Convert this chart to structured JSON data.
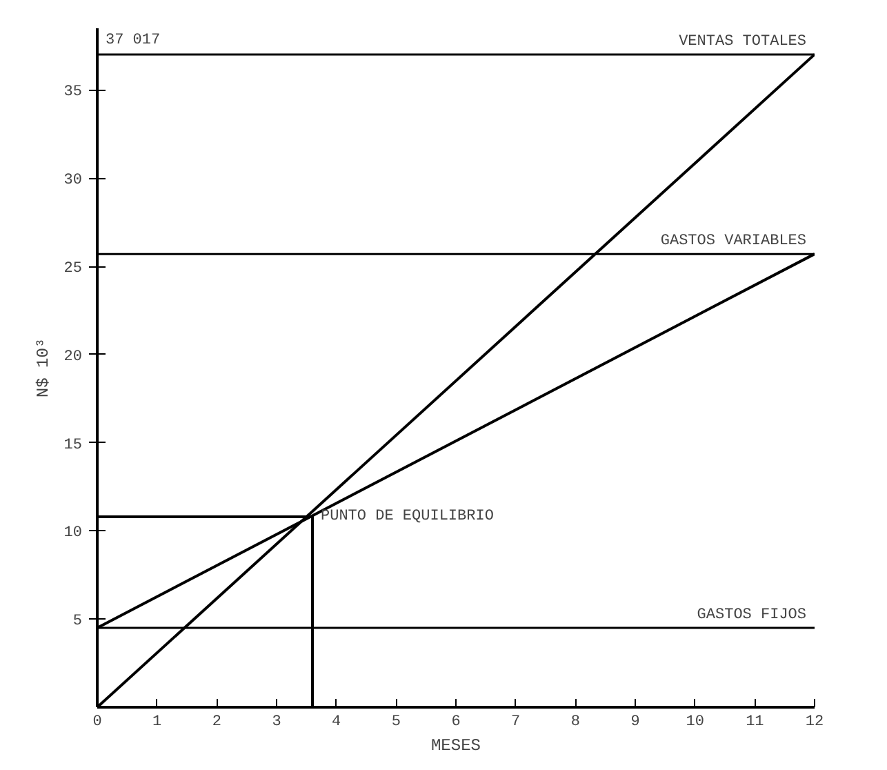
{
  "chart_data": {
    "type": "line",
    "ylabel": "N$ 10³",
    "xlabel": "MESES",
    "xlim": [
      0,
      12
    ],
    "ylim": [
      0,
      38.5
    ],
    "xticks": [
      0,
      1,
      2,
      3,
      4,
      5,
      6,
      7,
      8,
      9,
      10,
      11,
      12
    ],
    "yticks": [
      5,
      10,
      15,
      20,
      25,
      30,
      35
    ],
    "grid": false,
    "marker": "none",
    "line_style": "solid",
    "series": [
      {
        "color": "#000000",
        "x": [
          0,
          12
        ],
        "values": [
          0,
          37.017
        ]
      },
      {
        "color": "#000000",
        "x": [
          0,
          12
        ],
        "values": [
          4.5,
          25.7
        ]
      },
      {
        "color": "#000000",
        "x": [
          0,
          3.6,
          3.6
        ],
        "values": [
          10.8,
          10.8,
          0
        ]
      }
    ],
    "ref_lines": [
      {
        "axis": "y",
        "value": 37.017,
        "label": "VENTAS TOTALES",
        "color": "#000000"
      },
      {
        "axis": "y",
        "value": 25.7,
        "label": "GASTOS VARIABLES",
        "color": "#000000"
      },
      {
        "axis": "y",
        "value": 4.5,
        "label": "GASTOS FIJOS",
        "color": "#000000"
      }
    ],
    "annotations": [
      {
        "text": "PUNTO DE EQUILIBRIO",
        "x": 3.6,
        "y": 10.8
      },
      {
        "text": "37 017",
        "x": 0,
        "y": 37.017
      }
    ]
  }
}
